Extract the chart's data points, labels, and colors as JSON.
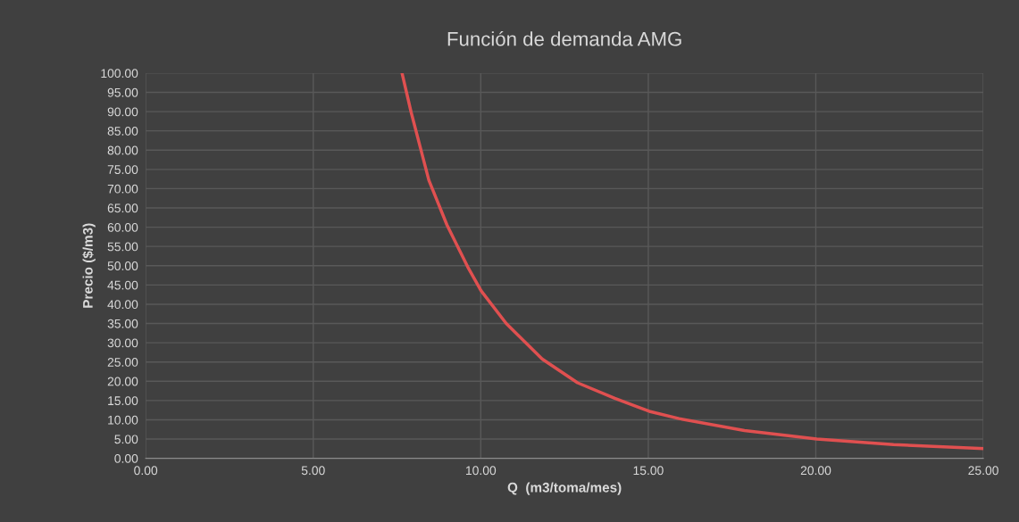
{
  "chart_data": {
    "type": "line",
    "title": "Función de demanda AMG",
    "xlabel": "Q  (m3/toma/mes)",
    "ylabel": "Precio ($/m3)",
    "x": [
      7.65,
      7.92,
      8.45,
      8.99,
      9.61,
      10.01,
      10.76,
      11.83,
      12.89,
      14.0,
      14.67,
      15.03,
      15.92,
      17.87,
      20.03,
      22.32,
      25.0
    ],
    "series": [
      {
        "color": "#e05050",
        "values": [
          100.0,
          89.9,
          72.2,
          60.6,
          49.7,
          43.5,
          35.0,
          25.8,
          19.6,
          15.6,
          13.4,
          12.2,
          10.3,
          7.2,
          5.0,
          3.55,
          2.55
        ]
      }
    ],
    "xlim": [
      0,
      25
    ],
    "ylim": [
      0,
      100
    ],
    "xticks": [
      {
        "value": 0,
        "label": "0.00"
      },
      {
        "value": 5,
        "label": "5.00"
      },
      {
        "value": 10,
        "label": "10.00"
      },
      {
        "value": 15,
        "label": "15.00"
      },
      {
        "value": 20,
        "label": "20.00"
      },
      {
        "value": 25,
        "label": "25.00"
      }
    ],
    "yticks": [
      {
        "value": 0,
        "label": "0.00"
      },
      {
        "value": 5,
        "label": "5.00"
      },
      {
        "value": 10,
        "label": "10.00"
      },
      {
        "value": 15,
        "label": "15.00"
      },
      {
        "value": 20,
        "label": "20.00"
      },
      {
        "value": 25,
        "label": "25.00"
      },
      {
        "value": 30,
        "label": "30.00"
      },
      {
        "value": 35,
        "label": "35.00"
      },
      {
        "value": 40,
        "label": "40.00"
      },
      {
        "value": 45,
        "label": "45.00"
      },
      {
        "value": 50,
        "label": "50.00"
      },
      {
        "value": 55,
        "label": "55.00"
      },
      {
        "value": 60,
        "label": "60.00"
      },
      {
        "value": 65,
        "label": "65.00"
      },
      {
        "value": 70,
        "label": "70.00"
      },
      {
        "value": 75,
        "label": "75.00"
      },
      {
        "value": 80,
        "label": "80.00"
      },
      {
        "value": 85,
        "label": "85.00"
      },
      {
        "value": 90,
        "label": "90.00"
      },
      {
        "value": 95,
        "label": "95.00"
      },
      {
        "value": 100,
        "label": "100.00"
      }
    ],
    "grid": true,
    "marker": "none",
    "line_style": "solid",
    "legend": false
  }
}
